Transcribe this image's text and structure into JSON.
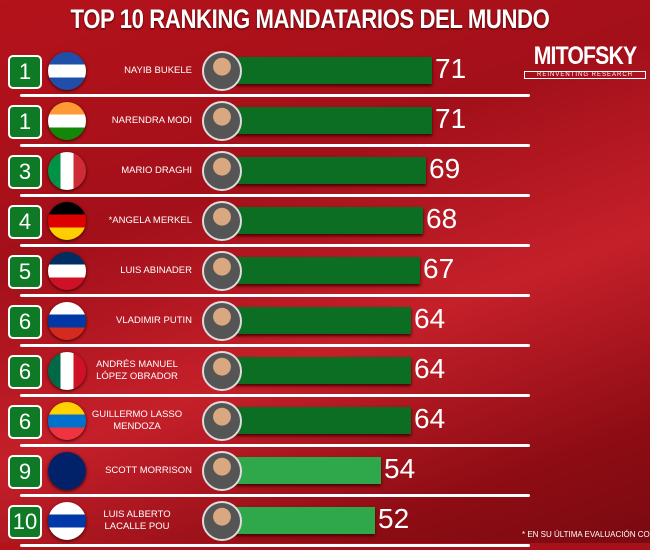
{
  "chart_data": {
    "type": "bar",
    "title": "TOP 10 RANKING MANDATARIOS DEL MUNDO",
    "orientation": "horizontal",
    "colors": {
      "top": "#0b6e22",
      "lower": "#2ea84a"
    },
    "rows": [
      {
        "rank": "1",
        "name": "NAYIB BUKELE",
        "value": 71,
        "flag": [
          "#1f4fa8",
          "#ffffff",
          "#1f4fa8"
        ]
      },
      {
        "rank": "1",
        "name": "NARENDRA MODI",
        "value": 71,
        "flag": [
          "#ff9933",
          "#ffffff",
          "#138808"
        ]
      },
      {
        "rank": "3",
        "name": "MARIO DRAGHI",
        "value": 69,
        "flag": [
          "#009246",
          "#ffffff",
          "#ce2b37"
        ],
        "vertical": true
      },
      {
        "rank": "4",
        "name": "*ANGELA MERKEL",
        "value": 68,
        "flag": [
          "#000000",
          "#dd0000",
          "#ffce00"
        ]
      },
      {
        "rank": "5",
        "name": "LUIS ABINADER",
        "value": 67,
        "flag": [
          "#002d62",
          "#ffffff",
          "#ce1126"
        ]
      },
      {
        "rank": "6",
        "name": "VLADIMIR PUTIN",
        "value": 64,
        "flag": [
          "#ffffff",
          "#0039a6",
          "#d52b1e"
        ]
      },
      {
        "rank": "6",
        "name": "ANDRÉS MANUEL LÓPEZ OBRADOR",
        "value": 64,
        "flag": [
          "#006847",
          "#ffffff",
          "#ce1126"
        ],
        "vertical": true
      },
      {
        "rank": "6",
        "name": "GUILLERMO LASSO MENDOZA",
        "value": 64,
        "flag": [
          "#ffd100",
          "#0072ce",
          "#ef3340"
        ]
      },
      {
        "rank": "9",
        "name": "SCOTT MORRISON",
        "value": 54,
        "flag": [
          "#012169",
          "#012169",
          "#012169"
        ]
      },
      {
        "rank": "10",
        "name": "LUIS ALBERTO LACALLE POU",
        "value": 52,
        "flag": [
          "#ffffff",
          "#0038a8",
          "#ffffff"
        ]
      }
    ]
  },
  "logo": {
    "name": "MITOFSKY",
    "tagline": "REINVENTING RESEARCH"
  },
  "footnote": "* EN SU ÚLTIMA EVALUACIÓN COMO CA"
}
